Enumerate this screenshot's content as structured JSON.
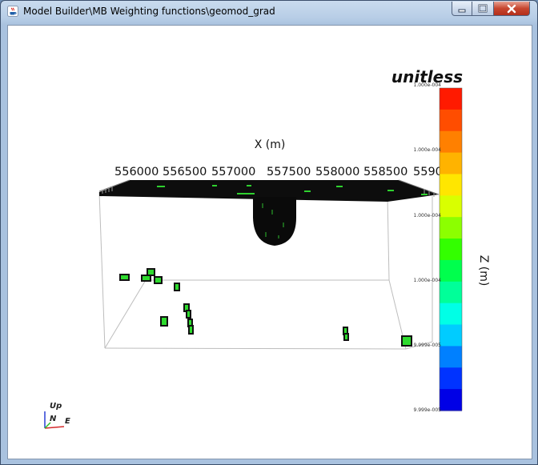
{
  "window": {
    "title": "Model Builder\\MB Weighting functions\\geomod_grad"
  },
  "scene": {
    "x_axis_label": "X (m)",
    "x_ticks": [
      "556000",
      "556500",
      "557000",
      "557500",
      "558000",
      "558500",
      "5590"
    ],
    "orientation": {
      "up": "Up",
      "north": "N",
      "east": "E"
    }
  },
  "colorbar": {
    "title": "unitless",
    "axis_label": "Z (m)",
    "ticks": [
      "1.000e-004",
      "1.000e-004",
      "1.000e-004",
      "1.000e-004",
      "9.999e-005",
      "9.999e-005"
    ],
    "colors": [
      "#ff1a00",
      "#ff4d00",
      "#ff8000",
      "#ffb300",
      "#ffe600",
      "#d9ff00",
      "#8cff00",
      "#33ff00",
      "#00ff4d",
      "#00ff99",
      "#00ffe6",
      "#00ccff",
      "#0080ff",
      "#0033ff",
      "#0000e6"
    ]
  }
}
